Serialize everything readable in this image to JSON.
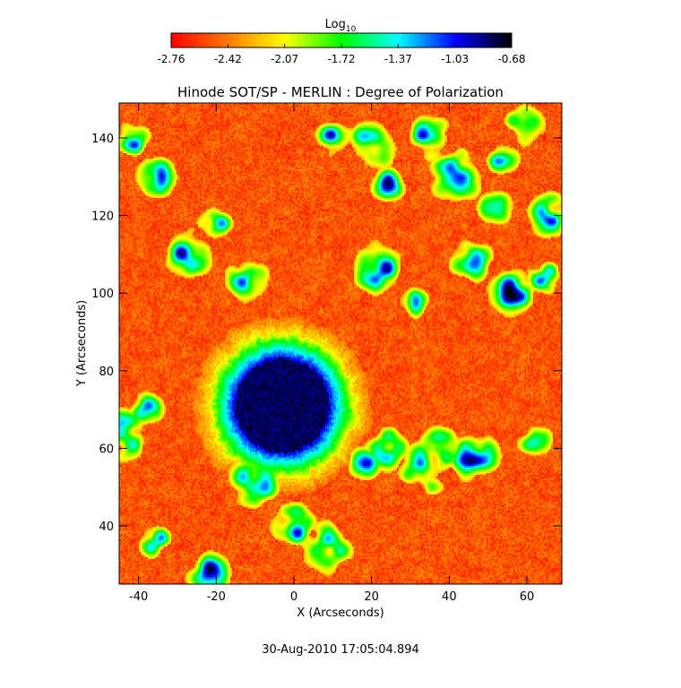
{
  "chart_data": {
    "type": "heatmap",
    "title": "Hinode SOT/SP - MERLIN : Degree of Polarization",
    "xlabel": "X (Arcseconds)",
    "ylabel": "Y (Arcseconds)",
    "xlim": [
      -45,
      69
    ],
    "ylim": [
      25,
      149
    ],
    "x_ticks": [
      -40,
      -20,
      0,
      20,
      40,
      60
    ],
    "y_ticks": [
      40,
      60,
      80,
      100,
      120,
      140
    ],
    "colorbar": {
      "title": "Log",
      "title_subscript": "10",
      "range": [
        -2.76,
        -0.68
      ],
      "tick_labels": [
        "-2.76",
        "-2.42",
        "-2.07",
        "-1.72",
        "-1.37",
        "-1.03",
        "-0.68"
      ],
      "colormap": [
        "#ff0000",
        "#ff7a00",
        "#ffff00",
        "#00ff00",
        "#00ffff",
        "#0000ff",
        "#000000"
      ]
    },
    "features": {
      "sunspot_center": [
        -3,
        71
      ],
      "umbra_radius": 12,
      "penumbra_radius": 19,
      "plage_patches": [
        [
          -41,
          140
        ],
        [
          -36,
          130
        ],
        [
          -28,
          110
        ],
        [
          -20,
          118
        ],
        [
          -12,
          103
        ],
        [
          -44,
          64
        ],
        [
          -38,
          70
        ],
        [
          10,
          140
        ],
        [
          20,
          138
        ],
        [
          24,
          128
        ],
        [
          35,
          140
        ],
        [
          42,
          130
        ],
        [
          54,
          135
        ],
        [
          60,
          143
        ],
        [
          22,
          106
        ],
        [
          30,
          98
        ],
        [
          46,
          108
        ],
        [
          56,
          100
        ],
        [
          64,
          104
        ],
        [
          38,
          60
        ],
        [
          34,
          55
        ],
        [
          18,
          56
        ],
        [
          24,
          60
        ],
        [
          46,
          58
        ],
        [
          62,
          62
        ],
        [
          0,
          40
        ],
        [
          8,
          34
        ],
        [
          -36,
          36
        ],
        [
          -22,
          28
        ],
        [
          -10,
          52
        ],
        [
          52,
          122
        ],
        [
          66,
          120
        ]
      ]
    },
    "footer_timestamp": "30-Aug-2010 17:05:04.894"
  }
}
